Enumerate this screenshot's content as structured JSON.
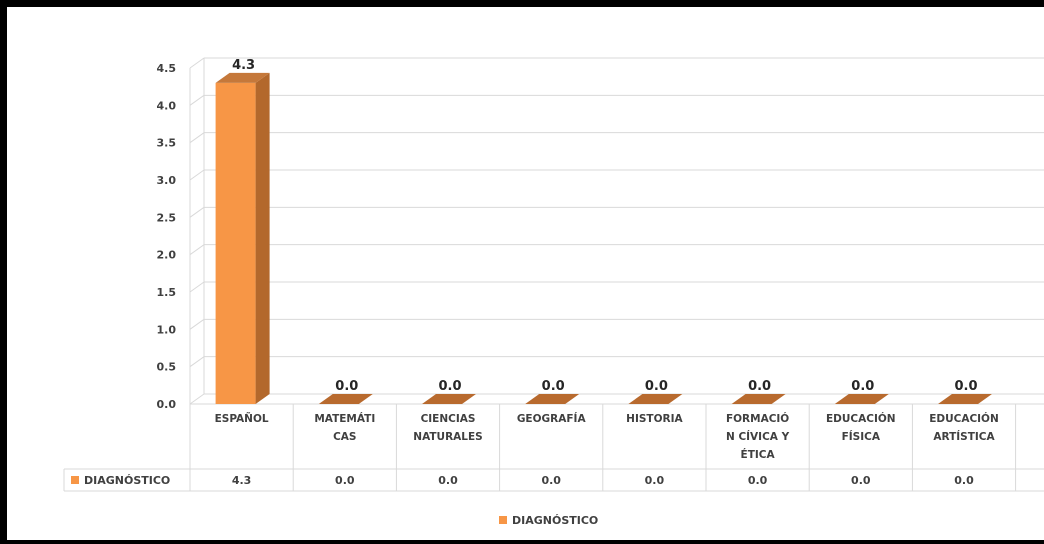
{
  "chart_data": {
    "type": "bar",
    "categories": [
      [
        "ESPAÑOL"
      ],
      [
        "MATEMÁTI",
        "CAS"
      ],
      [
        "CIENCIAS",
        "NATURALES"
      ],
      [
        "GEOGRAFÍA"
      ],
      [
        "HISTORIA"
      ],
      [
        "FORMACIÓ",
        "N CÍVICA Y",
        "ÉTICA"
      ],
      [
        "EDUCACIÓN",
        "FÍSICA"
      ],
      [
        "EDUCACIÓN",
        "ARTÍSTICA"
      ]
    ],
    "series": [
      {
        "name": "DIAGNÓSTICO",
        "values": [
          4.3,
          0.0,
          0.0,
          0.0,
          0.0,
          0.0,
          0.0,
          0.0
        ],
        "color": "#F79646"
      }
    ],
    "ylim": [
      0,
      4.5
    ],
    "yticks": [
      "0.0",
      "0.5",
      "1.0",
      "1.5",
      "2.0",
      "2.5",
      "3.0",
      "3.5",
      "4.0",
      "4.5"
    ],
    "value_labels": [
      "4.3",
      "0.0",
      "0.0",
      "0.0",
      "0.0",
      "0.0",
      "0.0",
      "0.0"
    ],
    "table_values": [
      "4.3",
      "0.0",
      "0.0",
      "0.0",
      "0.0",
      "0.0",
      "0.0",
      "0.0"
    ],
    "grid": true,
    "legend_position": "bottom",
    "style": "3d-column-with-data-table"
  }
}
